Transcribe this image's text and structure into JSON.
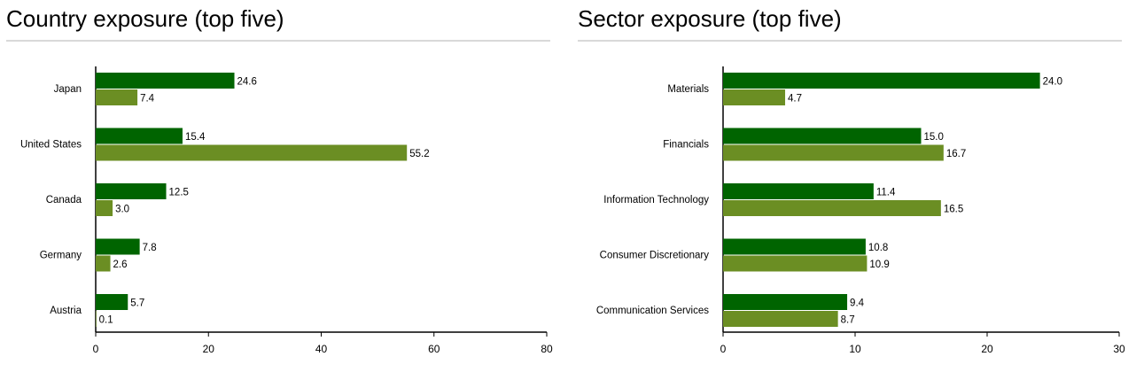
{
  "colors": {
    "series1": "#006400",
    "series2": "#6b8e23",
    "axis": "#000000",
    "rule": "#d9d9d9"
  },
  "chart_data": [
    {
      "type": "bar",
      "orientation": "horizontal",
      "title": "Country exposure (top five)",
      "categories": [
        "Japan",
        "United States",
        "Canada",
        "Germany",
        "Austria"
      ],
      "series": [
        {
          "values": [
            24.6,
            15.4,
            12.5,
            7.8,
            5.7
          ],
          "value_labels": [
            "24.6",
            "15.4",
            "12.5",
            "7.8",
            "5.7"
          ],
          "color": "#006400"
        },
        {
          "values": [
            7.4,
            55.2,
            3.0,
            2.6,
            0.1
          ],
          "value_labels": [
            "7.4",
            "55.2",
            "3.0",
            "2.6",
            "0.1"
          ],
          "color": "#6b8e23"
        }
      ],
      "xlim": [
        0,
        80
      ],
      "xticks": [
        0,
        20,
        40,
        60,
        80
      ],
      "xtick_labels": [
        "0",
        "20",
        "40",
        "60",
        "80"
      ],
      "grid": false
    },
    {
      "type": "bar",
      "orientation": "horizontal",
      "title": "Sector exposure (top five)",
      "categories": [
        "Materials",
        "Financials",
        "Information Technology",
        "Consumer Discretionary",
        "Communication Services"
      ],
      "series": [
        {
          "values": [
            24.0,
            15.0,
            11.4,
            10.8,
            9.4
          ],
          "value_labels": [
            "24.0",
            "15.0",
            "11.4",
            "10.8",
            "9.4"
          ],
          "color": "#006400"
        },
        {
          "values": [
            4.7,
            16.7,
            16.5,
            10.9,
            8.7
          ],
          "value_labels": [
            "4.7",
            "16.7",
            "16.5",
            "10.9",
            "8.7"
          ],
          "color": "#6b8e23"
        }
      ],
      "xlim": [
        0,
        30
      ],
      "xticks": [
        0,
        10,
        20,
        30
      ],
      "xtick_labels": [
        "0",
        "10",
        "20",
        "30"
      ],
      "grid": false
    }
  ]
}
